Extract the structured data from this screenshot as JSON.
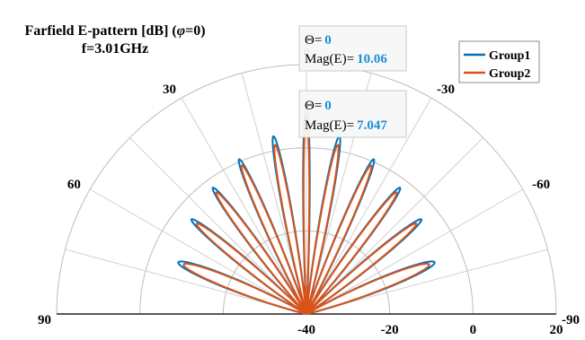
{
  "chart_data": {
    "type": "polar",
    "title": {
      "prefix": "Farfield E-pattern [dB] (",
      "phi_symbol": "φ",
      "suffix": "=0)",
      "line2": "f=3.01GHz"
    },
    "theta_range_deg": [
      -90,
      90
    ],
    "theta_zero": "top",
    "radial_range_db": [
      -40,
      20
    ],
    "radial_ticks": [
      "-40",
      "-20",
      "0",
      "20"
    ],
    "angle_ticks": [
      {
        "deg": 0,
        "label": "0"
      },
      {
        "deg": 30,
        "label": "30"
      },
      {
        "deg": -30,
        "label": "-30"
      },
      {
        "deg": 60,
        "label": "60"
      },
      {
        "deg": -60,
        "label": "-60"
      },
      {
        "deg": 90,
        "label": "90"
      },
      {
        "deg": -90,
        "label": "-90"
      }
    ],
    "angle_gridlines_deg": [
      -75,
      -60,
      -45,
      -30,
      -15,
      15,
      30,
      45,
      60,
      75
    ],
    "grid": true,
    "legend": {
      "position": "top-right"
    },
    "series": [
      {
        "name": "Group1",
        "color": "#0072BD",
        "peak_db": 10.06,
        "lobes": [
          {
            "center_deg": 0,
            "halfwidth_deg": 3.5,
            "peak_db": 10.06
          },
          {
            "center_deg": -10.5,
            "halfwidth_deg": 5.3,
            "peak_db": 3.5
          },
          {
            "center_deg": 10.5,
            "halfwidth_deg": 5.3,
            "peak_db": 3.5
          },
          {
            "center_deg": -23.5,
            "halfwidth_deg": 5.8,
            "peak_db": 0.6
          },
          {
            "center_deg": 23.5,
            "halfwidth_deg": 5.8,
            "peak_db": 0.6
          },
          {
            "center_deg": -36.5,
            "halfwidth_deg": 6.4,
            "peak_db": -2.2
          },
          {
            "center_deg": 36.5,
            "halfwidth_deg": 6.4,
            "peak_db": -2.2
          },
          {
            "center_deg": -50.5,
            "halfwidth_deg": 6.8,
            "peak_db": -4.2
          },
          {
            "center_deg": 50.5,
            "halfwidth_deg": 6.8,
            "peak_db": -4.2
          },
          {
            "center_deg": -68,
            "halfwidth_deg": 9.5,
            "peak_db": -6.8
          },
          {
            "center_deg": 68,
            "halfwidth_deg": 9.5,
            "peak_db": -6.8
          }
        ]
      },
      {
        "name": "Group2",
        "color": "#D95319",
        "peak_db": 7.047,
        "lobes": [
          {
            "center_deg": 0,
            "halfwidth_deg": 3.2,
            "peak_db": 7.047
          },
          {
            "center_deg": -10.5,
            "halfwidth_deg": 5.0,
            "peak_db": 1.4
          },
          {
            "center_deg": 10.5,
            "halfwidth_deg": 5.0,
            "peak_db": 1.4
          },
          {
            "center_deg": -23.5,
            "halfwidth_deg": 5.5,
            "peak_db": -1.0
          },
          {
            "center_deg": 23.5,
            "halfwidth_deg": 5.5,
            "peak_db": -1.0
          },
          {
            "center_deg": -36.5,
            "halfwidth_deg": 6.1,
            "peak_db": -3.6
          },
          {
            "center_deg": 36.5,
            "halfwidth_deg": 6.1,
            "peak_db": -3.6
          },
          {
            "center_deg": -50.5,
            "halfwidth_deg": 6.5,
            "peak_db": -5.8
          },
          {
            "center_deg": 50.5,
            "halfwidth_deg": 6.5,
            "peak_db": -5.8
          },
          {
            "center_deg": -68,
            "halfwidth_deg": 9.2,
            "peak_db": -8.2
          },
          {
            "center_deg": 68,
            "halfwidth_deg": 9.2,
            "peak_db": -8.2
          }
        ]
      }
    ],
    "datatips": [
      {
        "series": "Group1",
        "theta_label": "Θ=",
        "theta_value": "0",
        "mag_label": "Mag(E)=",
        "mag_value": "10.06",
        "theta_deg": 0,
        "mag_db": 10.06
      },
      {
        "series": "Group2",
        "theta_label": "Θ=",
        "theta_value": "0",
        "mag_label": "Mag(E)=",
        "mag_value": "7.047",
        "theta_deg": 0,
        "mag_db": 7.047
      }
    ],
    "value_color": "#1a8fd8"
  }
}
